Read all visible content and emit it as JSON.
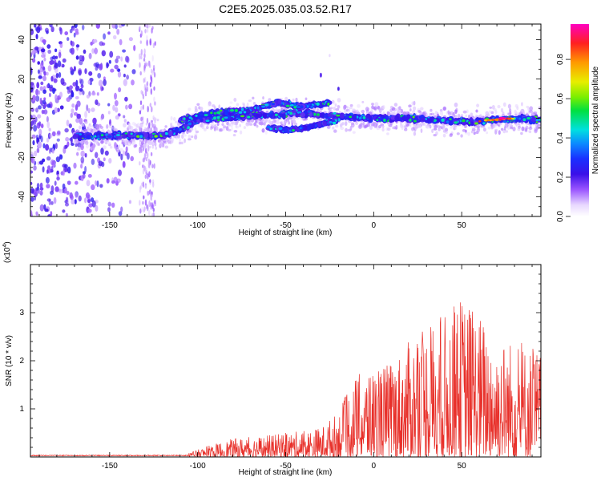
{
  "title": "C2E5.2025.035.03.52.R17",
  "chart_data": [
    {
      "type": "heatmap",
      "xlabel": "Height of straight line (km)",
      "ylabel": "Frequency (Hz)",
      "xlim": [
        -195,
        95
      ],
      "ylim": [
        -50,
        48
      ],
      "xticks": [
        "-150",
        "-100",
        "-50",
        "0",
        "50"
      ],
      "yticks": [
        "-40",
        "-20",
        "0",
        "20",
        "40"
      ],
      "colorbar": {
        "label": "Normalized spectral amplitude",
        "range": [
          0,
          0.98
        ],
        "ticks": [
          "0.0",
          "0.2",
          "0.4",
          "0.6",
          "0.8"
        ]
      },
      "features": {
        "main_trace": [
          [
            -170,
            -9
          ],
          [
            -150,
            -9
          ],
          [
            -130,
            -9
          ],
          [
            -120,
            -9
          ],
          [
            -110,
            -6
          ],
          [
            -100,
            -1
          ],
          [
            -90,
            0
          ],
          [
            -75,
            1
          ],
          [
            -55,
            2
          ],
          [
            -45,
            3
          ],
          [
            -35,
            2
          ],
          [
            -20,
            1
          ],
          [
            0,
            0
          ],
          [
            20,
            0
          ],
          [
            40,
            -1
          ],
          [
            55,
            -2
          ],
          [
            65,
            -1
          ],
          [
            80,
            0
          ],
          [
            95,
            -1
          ]
        ],
        "upper_trace": [
          [
            -110,
            -1
          ],
          [
            -90,
            3
          ],
          [
            -70,
            4
          ],
          [
            -55,
            8
          ],
          [
            -40,
            6
          ],
          [
            -25,
            8
          ]
        ],
        "secondary_trace": [
          [
            -60,
            -5
          ],
          [
            -50,
            -6
          ],
          [
            -40,
            -5
          ],
          [
            -30,
            -3
          ],
          [
            -20,
            -1
          ]
        ],
        "peak": {
          "x": 73,
          "y": 0,
          "amplitude": 0.98
        }
      }
    },
    {
      "type": "line",
      "xlabel": "Height of straight line (km)",
      "ylabel": "SNR (10 * v/v)",
      "yscale_label": "(x10",
      "yscale_exponent": "4",
      "xlim": [
        -195,
        95
      ],
      "ylim": [
        0,
        4
      ],
      "xticks": [
        "-150",
        "-100",
        "-50",
        "0",
        "50"
      ],
      "yticks": [
        "1",
        "2",
        "3"
      ],
      "color": "#e8302a",
      "envelope": {
        "x": [
          -195,
          -140,
          -120,
          -105,
          -95,
          -80,
          -60,
          -40,
          -30,
          -20,
          -15,
          -10,
          0,
          10,
          20,
          30,
          40,
          50,
          60,
          70,
          80,
          90,
          95
        ],
        "y": [
          0.02,
          0.02,
          0.04,
          0.08,
          0.22,
          0.38,
          0.45,
          0.55,
          0.62,
          0.95,
          1.35,
          1.7,
          1.85,
          2.0,
          2.4,
          2.75,
          2.95,
          3.35,
          3.0,
          2.5,
          2.45,
          2.3,
          2.2
        ]
      }
    }
  ]
}
